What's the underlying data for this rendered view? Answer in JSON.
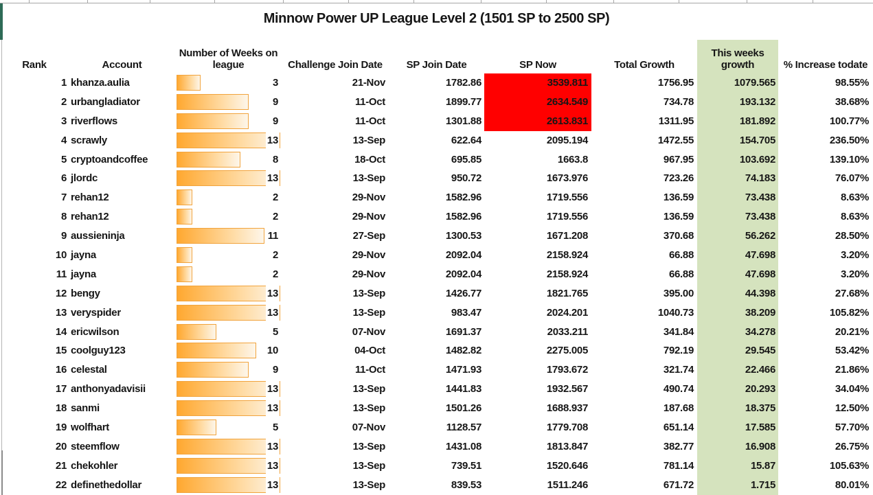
{
  "title": "Minnow Power UP League Level 2 (1501 SP to 2500 SP)",
  "columns": {
    "rank": "Rank",
    "account": "Account",
    "weeks_line1": "Number of Weeks on",
    "weeks_line2": "league",
    "challenge_join": "Challenge Join Date",
    "sp_join": "SP Join Date",
    "sp_now": "SP Now",
    "total_growth": "Total Growth",
    "week_growth_line1": "This weeks",
    "week_growth_line2": "growth",
    "pct_increase": "% Increase todate"
  },
  "weeks_max": 13,
  "colors": {
    "bar_border": "#f1a33c",
    "bar_fill_start": "#ffa830",
    "bar_fill_end": "#fdf6ea",
    "alert_red": "#ff0000",
    "highlight_green": "#d5e3be",
    "accent_teal": "#2e6b57"
  },
  "rows": [
    {
      "rank": "1",
      "account": "khanza.aulia",
      "weeks": 3,
      "weeks_label": "3",
      "challenge_join": "21-Nov",
      "sp_join": "1782.86",
      "sp_now": "3539.811",
      "sp_now_alert": true,
      "total_growth": "1756.95",
      "week_growth": "1079.565",
      "pct_increase": "98.55%"
    },
    {
      "rank": "2",
      "account": "urbangladiator",
      "weeks": 9,
      "weeks_label": "9",
      "challenge_join": "11-Oct",
      "sp_join": "1899.77",
      "sp_now": "2634.549",
      "sp_now_alert": true,
      "total_growth": "734.78",
      "week_growth": "193.132",
      "pct_increase": "38.68%"
    },
    {
      "rank": "3",
      "account": "riverflows",
      "weeks": 9,
      "weeks_label": "9",
      "challenge_join": "11-Oct",
      "sp_join": "1301.88",
      "sp_now": "2613.831",
      "sp_now_alert": true,
      "total_growth": "1311.95",
      "week_growth": "181.892",
      "pct_increase": "100.77%"
    },
    {
      "rank": "4",
      "account": "scrawly",
      "weeks": 13,
      "weeks_label": "13",
      "challenge_join": "13-Sep",
      "sp_join": "622.64",
      "sp_now": "2095.194",
      "sp_now_alert": false,
      "total_growth": "1472.55",
      "week_growth": "154.705",
      "pct_increase": "236.50%"
    },
    {
      "rank": "5",
      "account": "cryptoandcoffee",
      "weeks": 8,
      "weeks_label": "8",
      "challenge_join": "18-Oct",
      "sp_join": "695.85",
      "sp_now": "1663.8",
      "sp_now_alert": false,
      "total_growth": "967.95",
      "week_growth": "103.692",
      "pct_increase": "139.10%"
    },
    {
      "rank": "6",
      "account": "jlordc",
      "weeks": 13,
      "weeks_label": "13",
      "challenge_join": "13-Sep",
      "sp_join": "950.72",
      "sp_now": "1673.976",
      "sp_now_alert": false,
      "total_growth": "723.26",
      "week_growth": "74.183",
      "pct_increase": "76.07%"
    },
    {
      "rank": "7",
      "account": "rehan12",
      "weeks": 2,
      "weeks_label": "2",
      "challenge_join": "29-Nov",
      "sp_join": "1582.96",
      "sp_now": "1719.556",
      "sp_now_alert": false,
      "total_growth": "136.59",
      "week_growth": "73.438",
      "pct_increase": "8.63%"
    },
    {
      "rank": "8",
      "account": "rehan12",
      "weeks": 2,
      "weeks_label": "2",
      "challenge_join": "29-Nov",
      "sp_join": "1582.96",
      "sp_now": "1719.556",
      "sp_now_alert": false,
      "total_growth": "136.59",
      "week_growth": "73.438",
      "pct_increase": "8.63%"
    },
    {
      "rank": "9",
      "account": "aussieninja",
      "weeks": 11,
      "weeks_label": "11",
      "challenge_join": "27-Sep",
      "sp_join": "1300.53",
      "sp_now": "1671.208",
      "sp_now_alert": false,
      "total_growth": "370.68",
      "week_growth": "56.262",
      "pct_increase": "28.50%"
    },
    {
      "rank": "10",
      "account": "jayna",
      "weeks": 2,
      "weeks_label": "2",
      "challenge_join": "29-Nov",
      "sp_join": "2092.04",
      "sp_now": "2158.924",
      "sp_now_alert": false,
      "total_growth": "66.88",
      "week_growth": "47.698",
      "pct_increase": "3.20%"
    },
    {
      "rank": "11",
      "account": "jayna",
      "weeks": 2,
      "weeks_label": "2",
      "challenge_join": "29-Nov",
      "sp_join": "2092.04",
      "sp_now": "2158.924",
      "sp_now_alert": false,
      "total_growth": "66.88",
      "week_growth": "47.698",
      "pct_increase": "3.20%"
    },
    {
      "rank": "12",
      "account": "bengy",
      "weeks": 13,
      "weeks_label": "13",
      "challenge_join": "13-Sep",
      "sp_join": "1426.77",
      "sp_now": "1821.765",
      "sp_now_alert": false,
      "total_growth": "395.00",
      "week_growth": "44.398",
      "pct_increase": "27.68%"
    },
    {
      "rank": "13",
      "account": "veryspider",
      "weeks": 13,
      "weeks_label": "13",
      "challenge_join": "13-Sep",
      "sp_join": "983.47",
      "sp_now": "2024.201",
      "sp_now_alert": false,
      "total_growth": "1040.73",
      "week_growth": "38.209",
      "pct_increase": "105.82%"
    },
    {
      "rank": "14",
      "account": "ericwilson",
      "weeks": 5,
      "weeks_label": "5",
      "challenge_join": "07-Nov",
      "sp_join": "1691.37",
      "sp_now": "2033.211",
      "sp_now_alert": false,
      "total_growth": "341.84",
      "week_growth": "34.278",
      "pct_increase": "20.21%"
    },
    {
      "rank": "15",
      "account": "coolguy123",
      "weeks": 10,
      "weeks_label": "10",
      "challenge_join": "04-Oct",
      "sp_join": "1482.82",
      "sp_now": "2275.005",
      "sp_now_alert": false,
      "total_growth": "792.19",
      "week_growth": "29.545",
      "pct_increase": "53.42%"
    },
    {
      "rank": "16",
      "account": "celestal",
      "weeks": 9,
      "weeks_label": "9",
      "challenge_join": "11-Oct",
      "sp_join": "1471.93",
      "sp_now": "1793.672",
      "sp_now_alert": false,
      "total_growth": "321.74",
      "week_growth": "22.466",
      "pct_increase": "21.86%"
    },
    {
      "rank": "17",
      "account": "anthonyadavisii",
      "weeks": 13,
      "weeks_label": "13",
      "challenge_join": "13-Sep",
      "sp_join": "1441.83",
      "sp_now": "1932.567",
      "sp_now_alert": false,
      "total_growth": "490.74",
      "week_growth": "20.293",
      "pct_increase": "34.04%"
    },
    {
      "rank": "18",
      "account": "sanmi",
      "weeks": 13,
      "weeks_label": "13",
      "challenge_join": "13-Sep",
      "sp_join": "1501.26",
      "sp_now": "1688.937",
      "sp_now_alert": false,
      "total_growth": "187.68",
      "week_growth": "18.375",
      "pct_increase": "12.50%"
    },
    {
      "rank": "19",
      "account": "wolfhart",
      "weeks": 5,
      "weeks_label": "5",
      "challenge_join": "07-Nov",
      "sp_join": "1128.57",
      "sp_now": "1779.708",
      "sp_now_alert": false,
      "total_growth": "651.14",
      "week_growth": "17.585",
      "pct_increase": "57.70%"
    },
    {
      "rank": "20",
      "account": "steemflow",
      "weeks": 13,
      "weeks_label": "13",
      "challenge_join": "13-Sep",
      "sp_join": "1431.08",
      "sp_now": "1813.847",
      "sp_now_alert": false,
      "total_growth": "382.77",
      "week_growth": "16.908",
      "pct_increase": "26.75%"
    },
    {
      "rank": "21",
      "account": "chekohler",
      "weeks": 13,
      "weeks_label": "13",
      "challenge_join": "13-Sep",
      "sp_join": "739.51",
      "sp_now": "1520.646",
      "sp_now_alert": false,
      "total_growth": "781.14",
      "week_growth": "15.87",
      "pct_increase": "105.63%"
    },
    {
      "rank": "22",
      "account": "definethedollar",
      "weeks": 13,
      "weeks_label": "13",
      "challenge_join": "13-Sep",
      "sp_join": "839.53",
      "sp_now": "1511.246",
      "sp_now_alert": false,
      "total_growth": "671.72",
      "week_growth": "1.715",
      "pct_increase": "80.01%"
    }
  ]
}
